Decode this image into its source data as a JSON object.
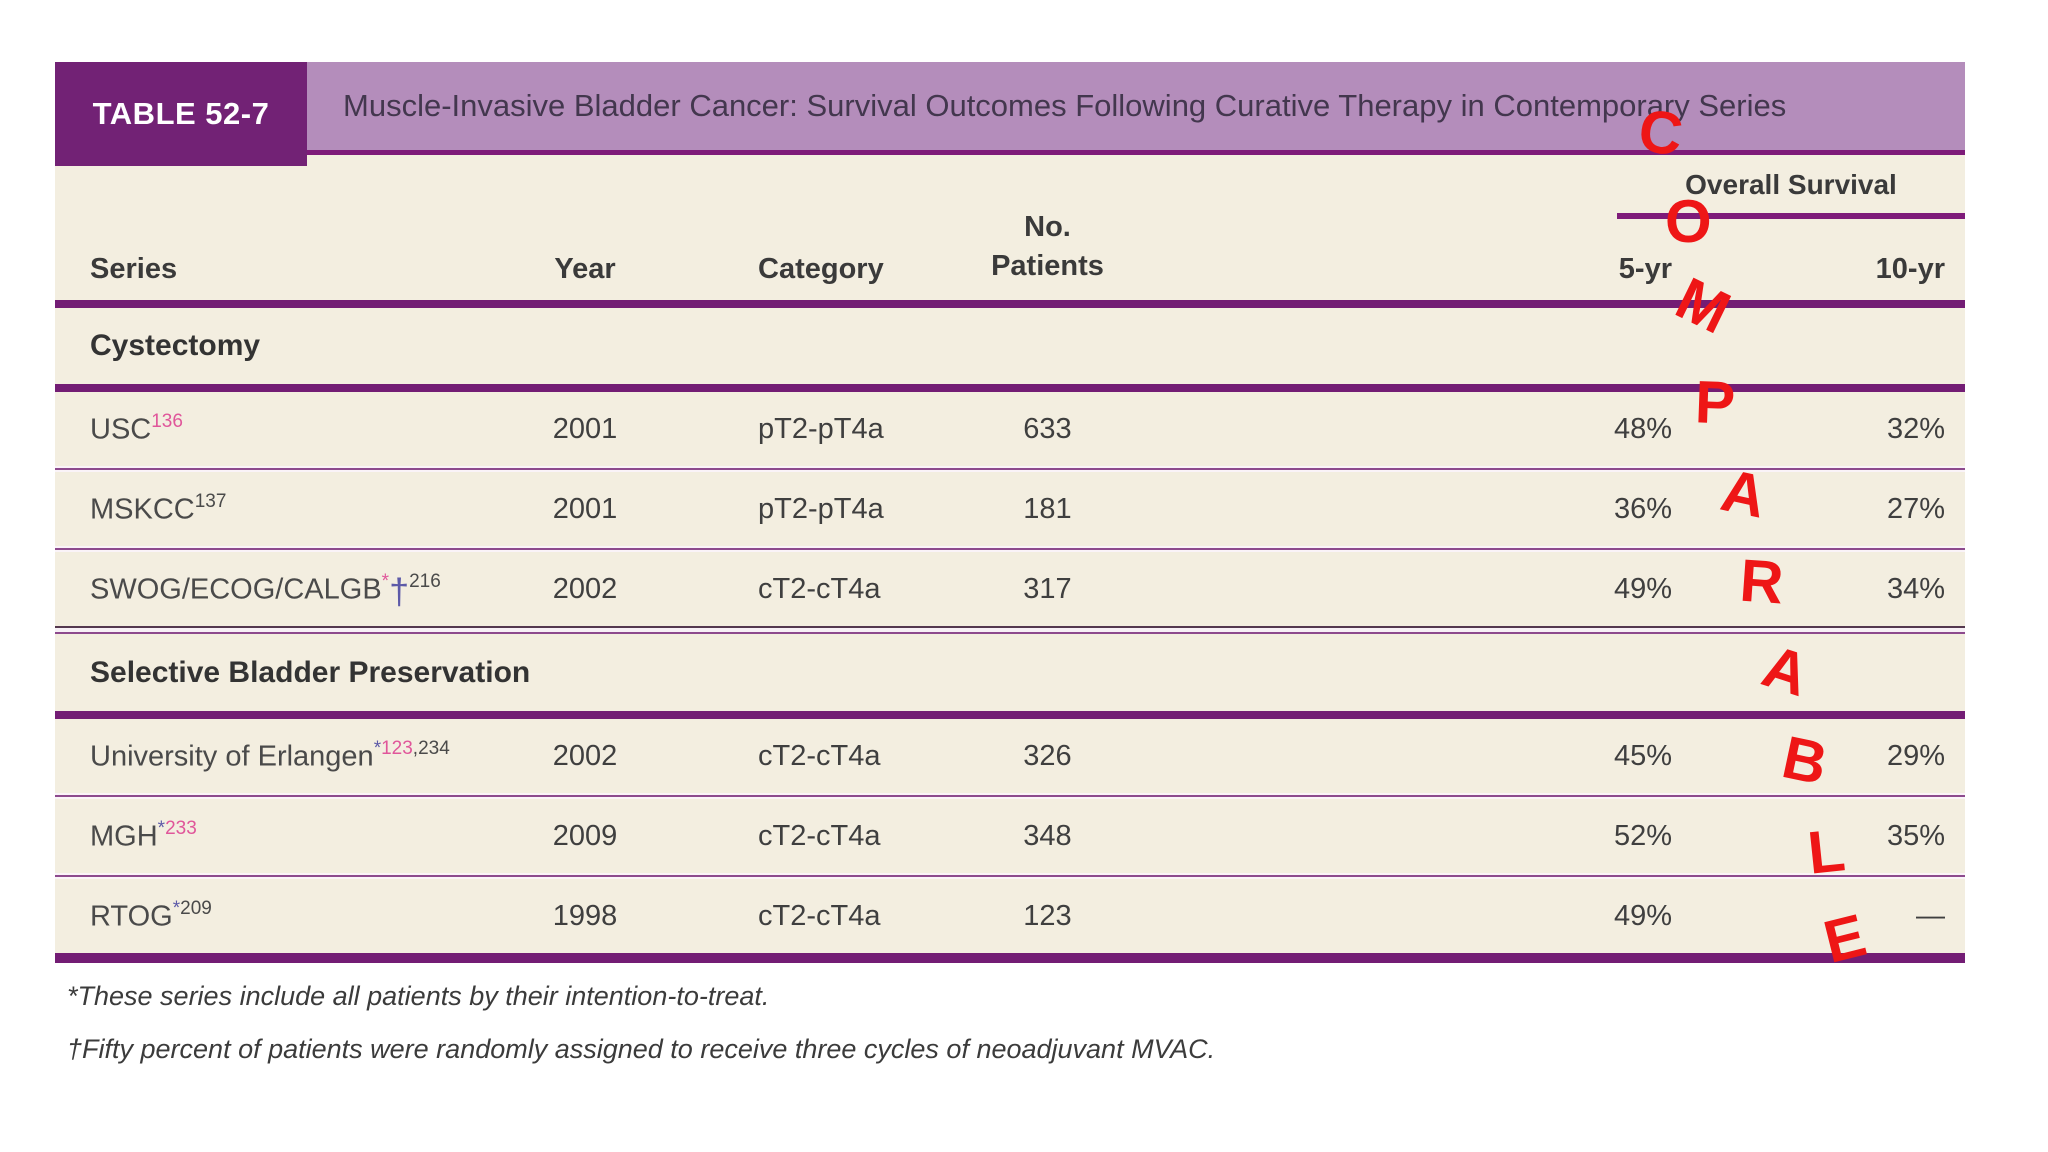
{
  "header": {
    "label": "TABLE 52-7",
    "title": "Muscle-Invasive Bladder Cancer: Survival Outcomes Following Curative Therapy in Contemporary Series"
  },
  "columns": {
    "series": "Series",
    "year": "Year",
    "category": "Category",
    "patients_line1": "No.",
    "patients_line2": "Patients",
    "overall_survival": "Overall Survival",
    "yr5": "5-yr",
    "yr10": "10-yr"
  },
  "sections": [
    {
      "title": "Cystectomy",
      "rows": [
        {
          "series_segments": [
            {
              "text": "USC",
              "style": "seg-base"
            },
            {
              "text": "136",
              "style": "sup-pink",
              "sup": true
            }
          ],
          "year": "2001",
          "category": "pT2-pT4a",
          "patients": "633",
          "os5": "48%",
          "os10": "32%"
        },
        {
          "series_segments": [
            {
              "text": "MSKCC",
              "style": "seg-base"
            },
            {
              "text": "137",
              "style": "sup-dark",
              "sup": true
            }
          ],
          "year": "2001",
          "category": "pT2-pT4a",
          "patients": "181",
          "os5": "36%",
          "os10": "27%"
        },
        {
          "series_segments": [
            {
              "text": "SWOG/ECOG/CALGB",
              "style": "seg-base"
            },
            {
              "text": "*",
              "style": "sup-pink",
              "sup": true
            },
            {
              "text": "†",
              "style": "dagger-blue"
            },
            {
              "text": "216",
              "style": "sup-dark",
              "sup": true
            }
          ],
          "year": "2002",
          "category": "cT2-cT4a",
          "patients": "317",
          "os5": "49%",
          "os10": "34%"
        }
      ]
    },
    {
      "title": "Selective Bladder Preservation",
      "rows": [
        {
          "series_segments": [
            {
              "text": "University of Erlangen",
              "style": "seg-base"
            },
            {
              "text": "*",
              "style": "sup-blue",
              "sup": true
            },
            {
              "text": "123",
              "style": "sup-pink",
              "sup": true
            },
            {
              "text": ",234",
              "style": "sup-dark",
              "sup": true
            }
          ],
          "year": "2002",
          "category": "cT2-cT4a",
          "patients": "326",
          "os5": "45%",
          "os10": "29%"
        },
        {
          "series_segments": [
            {
              "text": "MGH",
              "style": "seg-base"
            },
            {
              "text": "*",
              "style": "sup-blue",
              "sup": true
            },
            {
              "text": "233",
              "style": "sup-pink",
              "sup": true
            }
          ],
          "year": "2009",
          "category": "cT2-cT4a",
          "patients": "348",
          "os5": "52%",
          "os10": "35%"
        },
        {
          "series_segments": [
            {
              "text": "RTOG",
              "style": "seg-base"
            },
            {
              "text": "*",
              "style": "sup-blue",
              "sup": true
            },
            {
              "text": "209",
              "style": "sup-dark",
              "sup": true
            }
          ],
          "year": "1998",
          "category": "cT2-cT4a",
          "patients": "123",
          "os5": "49%",
          "os10": "—"
        }
      ]
    }
  ],
  "footnotes": [
    "*These series include all patients by their intention-to-treat.",
    "†Fifty percent of patients were randomly assigned to receive three cycles of neoadjuvant MVAC."
  ],
  "overlay": {
    "word": "COMPARABLE",
    "letters": [
      "C",
      "O",
      "M",
      "P",
      "A",
      "R",
      "A",
      "B",
      "L",
      "E"
    ],
    "color": "#ee1616"
  },
  "colors": {
    "band_dark_purple": "#722275",
    "band_light_purple": "#b48dbb",
    "rule_purple": "#731d74",
    "table_cream": "#f3eee0",
    "superscript_pink": "#e0569a",
    "superscript_blue": "#5d5aa8",
    "annotation_red": "#ee1616"
  }
}
